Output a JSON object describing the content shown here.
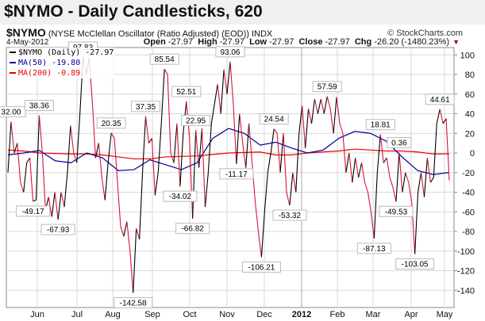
{
  "title": "$NYMO - Daily Candlesticks, 620",
  "header": {
    "symbol": "$NYMO",
    "description": "(NYSE McClellan Oscillator (Ratio Adjusted) (EOD)) INDX",
    "copyright": "© StockCharts.com",
    "date": "4-May-2012",
    "open_label": "Open",
    "open": "-27.97",
    "high_label": "High",
    "high": "-27.97",
    "low_label": "Low",
    "low": "-27.97",
    "close_label": "Close",
    "close": "-27.97",
    "chg_label": "Chg",
    "chg": "-26.20 (-1480.23%)",
    "chg_icon": "down-triangle-icon"
  },
  "legend": [
    {
      "label": "$NYMO (Daily) -27.97",
      "color": "#000000"
    },
    {
      "label": "MA(50) -19.80",
      "color": "#000099"
    },
    {
      "label": "MA(200) -0.89",
      "color": "#ee0000"
    }
  ],
  "chart_data": {
    "type": "line",
    "title": "$NYMO - Daily Candlesticks, 620",
    "x_range": [
      "2011-05-10",
      "2012-05-04"
    ],
    "x_ticks": [
      "Jun",
      "Jul",
      "Aug",
      "Sep",
      "Oct",
      "Nov",
      "Dec",
      "2012",
      "Feb",
      "Mar",
      "Apr",
      "May"
    ],
    "y_ticks": [
      100,
      80,
      60,
      40,
      20,
      0,
      -20,
      -40,
      -60,
      -80,
      -100,
      -120,
      -140
    ],
    "ylim": [
      -156,
      108
    ],
    "grid": true,
    "colors": {
      "up": "#000000",
      "down": "#dd1133",
      "ma50": "#000099",
      "ma200": "#ee0000",
      "grid": "#d8d8d8"
    },
    "series": [
      {
        "name": "$NYMO",
        "values": [
          -20,
          32,
          0,
          10,
          -30,
          -40,
          -10,
          -5,
          -49.17,
          -48,
          38.36,
          0,
          -58,
          -45,
          -65,
          -40,
          -67.93,
          -40,
          -55,
          -20,
          28,
          0,
          -10,
          40,
          97.83,
          80,
          97,
          50,
          -5,
          10,
          -25,
          -48,
          -10,
          20.35,
          15,
          -30,
          -75,
          -85,
          -70,
          -100,
          -142.58,
          -77,
          -88,
          -20,
          37.35,
          10,
          15,
          -43,
          -20,
          30,
          85.54,
          80,
          0,
          -10,
          30,
          -34.02,
          20,
          52.51,
          15,
          -66.82,
          22.95,
          -15,
          25,
          -55,
          -20,
          30,
          50,
          70,
          40,
          85,
          60,
          93.06,
          50,
          -11.17,
          40,
          10,
          -15,
          30,
          -10,
          -50,
          -80,
          -106.21,
          -60,
          -20,
          0,
          24.54,
          20,
          -20,
          20,
          -40,
          -53.32,
          -20,
          -40,
          20,
          48,
          5,
          45,
          30,
          55,
          40,
          55,
          40,
          57.59,
          45,
          20,
          57,
          30,
          20,
          -20,
          0,
          -30,
          -5,
          -25,
          -10,
          -30,
          -40,
          -60,
          -87.13,
          -20,
          18.81,
          -10,
          -5,
          -25,
          -35,
          -49.53,
          0.36,
          -40,
          -20,
          -30,
          -50,
          -103.05,
          -40,
          -20,
          -45,
          -5,
          -30,
          -25,
          30,
          44.61,
          30,
          35,
          -27.97
        ]
      },
      {
        "name": "MA(50)",
        "values": [
          -2,
          0,
          2.5,
          -8,
          -10,
          0,
          -5,
          -18,
          -17,
          -7,
          -12,
          -17,
          -10,
          15,
          25,
          20,
          8,
          11,
          5,
          0,
          3,
          15,
          22,
          20,
          12,
          -4,
          -18,
          -22,
          -19.8
        ]
      },
      {
        "name": "MA(200)",
        "values": [
          3,
          2,
          0,
          -0.5,
          -1,
          -1,
          -2,
          -4,
          -6,
          -6,
          -4,
          -3.5,
          -3,
          -1.5,
          0,
          0.5,
          1,
          -2,
          -2,
          0,
          1,
          2,
          4,
          3,
          2,
          2,
          1,
          -1,
          -0.89
        ]
      }
    ],
    "annotations": [
      {
        "idx": 1,
        "text": "32.00",
        "pos": "above"
      },
      {
        "idx": 10,
        "text": "38.36",
        "pos": "above"
      },
      {
        "idx": 8,
        "text": "-49.17",
        "pos": "below"
      },
      {
        "idx": 16,
        "text": "-67.93",
        "pos": "below"
      },
      {
        "idx": 24,
        "text": "97.83",
        "pos": "above"
      },
      {
        "idx": 33,
        "text": "20.35",
        "pos": "above"
      },
      {
        "idx": 40,
        "text": "-142.58",
        "pos": "below"
      },
      {
        "idx": 44,
        "text": "37.35",
        "pos": "above"
      },
      {
        "idx": 50,
        "text": "85.54",
        "pos": "above"
      },
      {
        "idx": 55,
        "text": "-34.02",
        "pos": "below"
      },
      {
        "idx": 57,
        "text": "52.51",
        "pos": "above"
      },
      {
        "idx": 59,
        "text": "-66.82",
        "pos": "below"
      },
      {
        "idx": 60,
        "text": "22.95",
        "pos": "above"
      },
      {
        "idx": 71,
        "text": "93.06",
        "pos": "above"
      },
      {
        "idx": 73,
        "text": "-11.17",
        "pos": "below"
      },
      {
        "idx": 81,
        "text": "-106.21",
        "pos": "below"
      },
      {
        "idx": 85,
        "text": "24.54",
        "pos": "above"
      },
      {
        "idx": 90,
        "text": "-53.32",
        "pos": "below"
      },
      {
        "idx": 102,
        "text": "57.59",
        "pos": "above"
      },
      {
        "idx": 117,
        "text": "-87.13",
        "pos": "below"
      },
      {
        "idx": 119,
        "text": "18.81",
        "pos": "above"
      },
      {
        "idx": 125,
        "text": "0.36",
        "pos": "above"
      },
      {
        "idx": 124,
        "text": "-49.53",
        "pos": "below"
      },
      {
        "idx": 130,
        "text": "-103.05",
        "pos": "below"
      },
      {
        "idx": 138,
        "text": "44.61",
        "pos": "above"
      }
    ]
  }
}
